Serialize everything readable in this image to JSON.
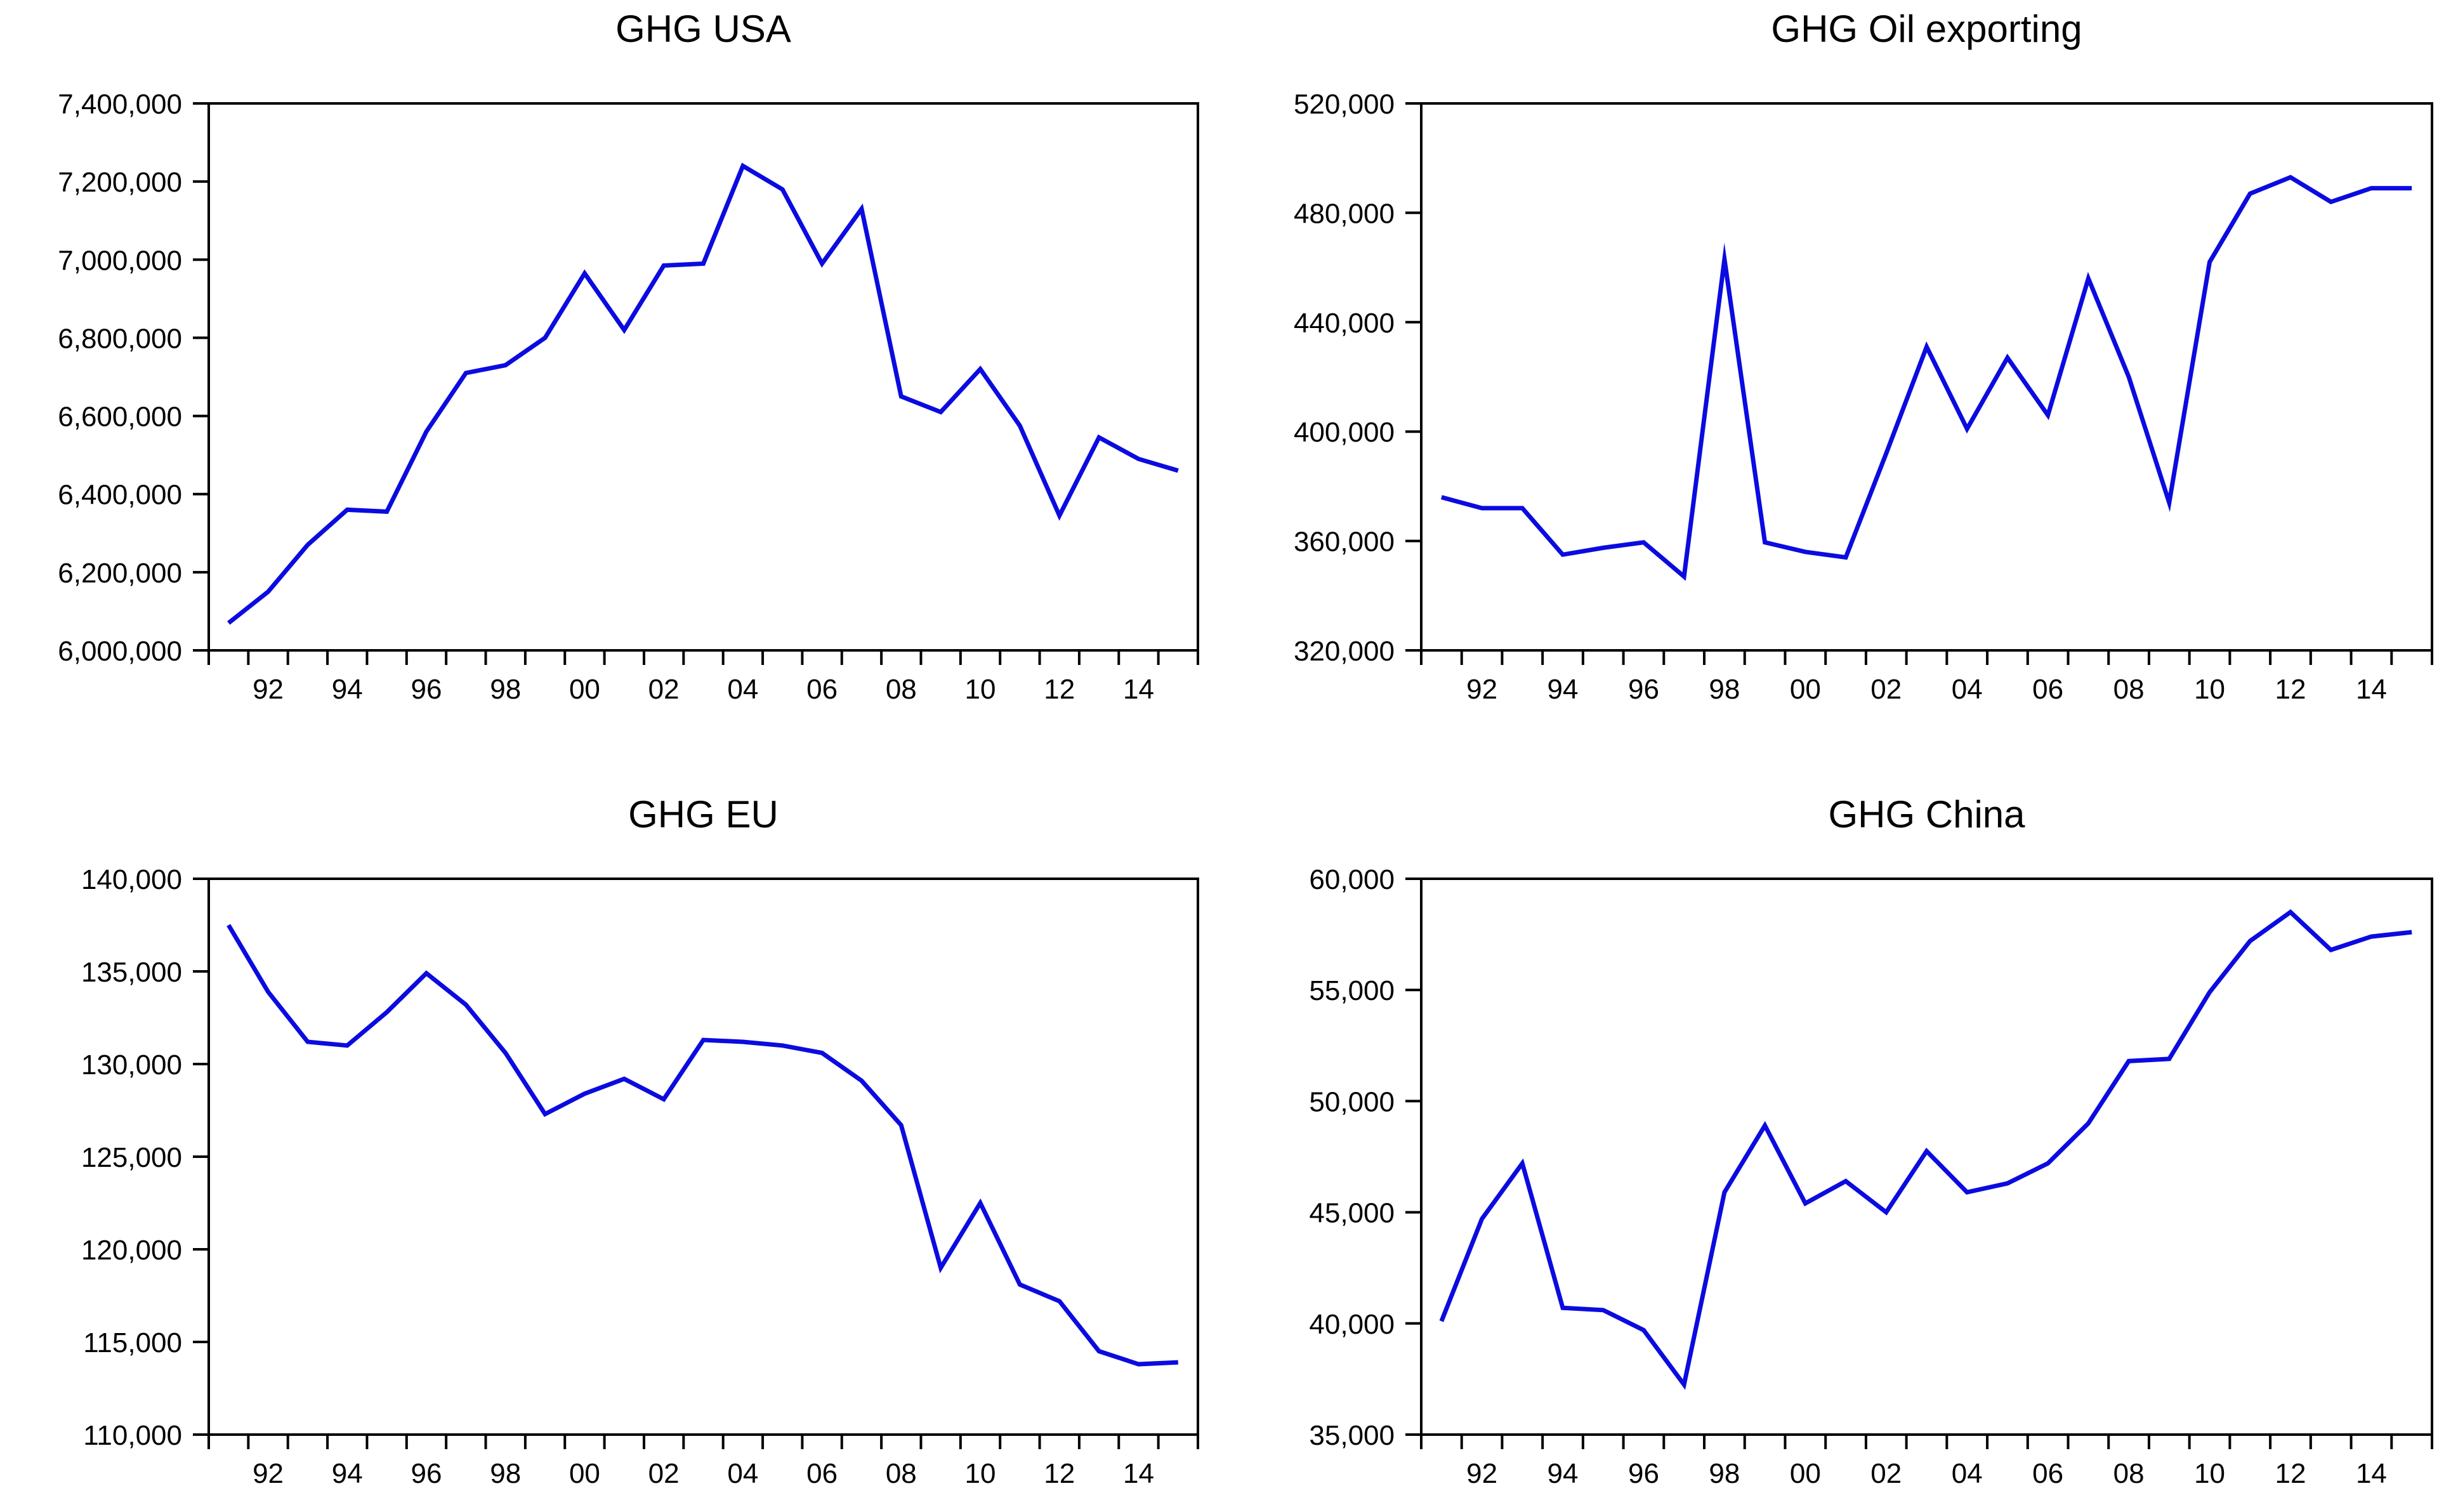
{
  "page": {
    "background": "#ffffff",
    "description_visible_text_only": true
  },
  "colors": {
    "series_line": "#0b0be0",
    "axis": "#000000",
    "text": "#000000"
  },
  "chart_data": [
    {
      "type": "line",
      "title": "GHG USA",
      "x_start_year": 1991,
      "years": [
        1991,
        1992,
        1993,
        1994,
        1995,
        1996,
        1997,
        1998,
        1999,
        2000,
        2001,
        2002,
        2003,
        2004,
        2005,
        2006,
        2007,
        2008,
        2009,
        2010,
        2011,
        2012,
        2013,
        2014,
        2015
      ],
      "values": [
        6070000,
        6150000,
        6270000,
        6360000,
        6355000,
        6560000,
        6710000,
        6730000,
        6800000,
        6965000,
        6820000,
        6985000,
        6990000,
        7240000,
        7180000,
        6990000,
        7130000,
        6650000,
        6610000,
        6720000,
        6575000,
        6345000,
        6545000,
        6490000,
        6460000
      ],
      "ylim": [
        6000000,
        7400000
      ],
      "grid": "off",
      "legend": "none",
      "y_ticks": [
        {
          "value": 6000000,
          "label": "6,000,000"
        },
        {
          "value": 6200000,
          "label": "6,200,000"
        },
        {
          "value": 6400000,
          "label": "6,400,000"
        },
        {
          "value": 6600000,
          "label": "6,600,000"
        },
        {
          "value": 6800000,
          "label": "6,800,000"
        },
        {
          "value": 7000000,
          "label": "7,000,000"
        },
        {
          "value": 7200000,
          "label": "7,200,000"
        },
        {
          "value": 7400000,
          "label": "7,400,000"
        }
      ],
      "x_ticks": [
        {
          "year": 1992,
          "label": "92"
        },
        {
          "year": 1994,
          "label": "94"
        },
        {
          "year": 1996,
          "label": "96"
        },
        {
          "year": 1998,
          "label": "98"
        },
        {
          "year": 2000,
          "label": "00"
        },
        {
          "year": 2002,
          "label": "02"
        },
        {
          "year": 2004,
          "label": "04"
        },
        {
          "year": 2006,
          "label": "06"
        },
        {
          "year": 2008,
          "label": "08"
        },
        {
          "year": 2010,
          "label": "10"
        },
        {
          "year": 2012,
          "label": "12"
        },
        {
          "year": 2014,
          "label": "14"
        }
      ]
    },
    {
      "type": "line",
      "title": "GHG Oil exporting",
      "x_start_year": 1991,
      "years": [
        1991,
        1992,
        1993,
        1994,
        1995,
        1996,
        1997,
        1998,
        1999,
        2000,
        2001,
        2002,
        2003,
        2004,
        2005,
        2006,
        2007,
        2008,
        2009,
        2010,
        2011,
        2012,
        2013,
        2014,
        2015
      ],
      "values": [
        376000,
        372000,
        372000,
        355000,
        357500,
        359500,
        347000,
        463000,
        359500,
        356000,
        354000,
        392000,
        431000,
        401000,
        427000,
        406000,
        456000,
        420000,
        374000,
        462000,
        487000,
        493000,
        484000,
        489000,
        489000
      ],
      "ylim": [
        320000,
        520000
      ],
      "grid": "off",
      "legend": "none",
      "y_ticks": [
        {
          "value": 320000,
          "label": "320,000"
        },
        {
          "value": 360000,
          "label": "360,000"
        },
        {
          "value": 400000,
          "label": "400,000"
        },
        {
          "value": 440000,
          "label": "440,000"
        },
        {
          "value": 480000,
          "label": "480,000"
        },
        {
          "value": 520000,
          "label": "520,000"
        }
      ],
      "x_ticks": [
        {
          "year": 1992,
          "label": "92"
        },
        {
          "year": 1994,
          "label": "94"
        },
        {
          "year": 1996,
          "label": "96"
        },
        {
          "year": 1998,
          "label": "98"
        },
        {
          "year": 2000,
          "label": "00"
        },
        {
          "year": 2002,
          "label": "02"
        },
        {
          "year": 2004,
          "label": "04"
        },
        {
          "year": 2006,
          "label": "06"
        },
        {
          "year": 2008,
          "label": "08"
        },
        {
          "year": 2010,
          "label": "10"
        },
        {
          "year": 2012,
          "label": "12"
        },
        {
          "year": 2014,
          "label": "14"
        }
      ]
    },
    {
      "type": "line",
      "title": "GHG EU",
      "x_start_year": 1991,
      "years": [
        1991,
        1992,
        1993,
        1994,
        1995,
        1996,
        1997,
        1998,
        1999,
        2000,
        2001,
        2002,
        2003,
        2004,
        2005,
        2006,
        2007,
        2008,
        2009,
        2010,
        2011,
        2012,
        2013,
        2014,
        2015
      ],
      "values": [
        137500,
        133900,
        131200,
        131000,
        132800,
        134900,
        133200,
        130600,
        127300,
        128400,
        129200,
        128100,
        131300,
        131200,
        131000,
        130600,
        129100,
        126700,
        119000,
        122500,
        118100,
        117200,
        114500,
        113800,
        113900
      ],
      "ylim": [
        110000,
        140000
      ],
      "grid": "off",
      "legend": "none",
      "y_ticks": [
        {
          "value": 110000,
          "label": "110,000"
        },
        {
          "value": 115000,
          "label": "115,000"
        },
        {
          "value": 120000,
          "label": "120,000"
        },
        {
          "value": 125000,
          "label": "125,000"
        },
        {
          "value": 130000,
          "label": "130,000"
        },
        {
          "value": 135000,
          "label": "135,000"
        },
        {
          "value": 140000,
          "label": "140,000"
        }
      ],
      "x_ticks": [
        {
          "year": 1992,
          "label": "92"
        },
        {
          "year": 1994,
          "label": "94"
        },
        {
          "year": 1996,
          "label": "96"
        },
        {
          "year": 1998,
          "label": "98"
        },
        {
          "year": 2000,
          "label": "00"
        },
        {
          "year": 2002,
          "label": "02"
        },
        {
          "year": 2004,
          "label": "04"
        },
        {
          "year": 2006,
          "label": "06"
        },
        {
          "year": 2008,
          "label": "08"
        },
        {
          "year": 2010,
          "label": "10"
        },
        {
          "year": 2012,
          "label": "12"
        },
        {
          "year": 2014,
          "label": "14"
        }
      ]
    },
    {
      "type": "line",
      "title": "GHG China",
      "x_start_year": 1991,
      "years": [
        1991,
        1992,
        1993,
        1994,
        1995,
        1996,
        1997,
        1998,
        1999,
        2000,
        2001,
        2002,
        2003,
        2004,
        2005,
        2006,
        2007,
        2008,
        2009,
        2010,
        2011,
        2012,
        2013,
        2014,
        2015
      ],
      "values": [
        40100,
        44700,
        47200,
        40700,
        40600,
        39700,
        37250,
        45900,
        48900,
        45400,
        46400,
        45000,
        47750,
        45900,
        46300,
        47200,
        49000,
        51800,
        51900,
        54900,
        57200,
        58500,
        56800,
        57400,
        57600
      ],
      "ylim": [
        35000,
        60000
      ],
      "grid": "off",
      "legend": "none",
      "y_ticks": [
        {
          "value": 35000,
          "label": "35,000"
        },
        {
          "value": 40000,
          "label": "40,000"
        },
        {
          "value": 45000,
          "label": "45,000"
        },
        {
          "value": 50000,
          "label": "50,000"
        },
        {
          "value": 55000,
          "label": "55,000"
        },
        {
          "value": 60000,
          "label": "60,000"
        }
      ],
      "x_ticks": [
        {
          "year": 1992,
          "label": "92"
        },
        {
          "year": 1994,
          "label": "94"
        },
        {
          "year": 1996,
          "label": "96"
        },
        {
          "year": 1998,
          "label": "98"
        },
        {
          "year": 2000,
          "label": "00"
        },
        {
          "year": 2002,
          "label": "02"
        },
        {
          "year": 2004,
          "label": "04"
        },
        {
          "year": 2006,
          "label": "06"
        },
        {
          "year": 2008,
          "label": "08"
        },
        {
          "year": 2010,
          "label": "10"
        },
        {
          "year": 2012,
          "label": "12"
        },
        {
          "year": 2014,
          "label": "14"
        }
      ]
    }
  ]
}
